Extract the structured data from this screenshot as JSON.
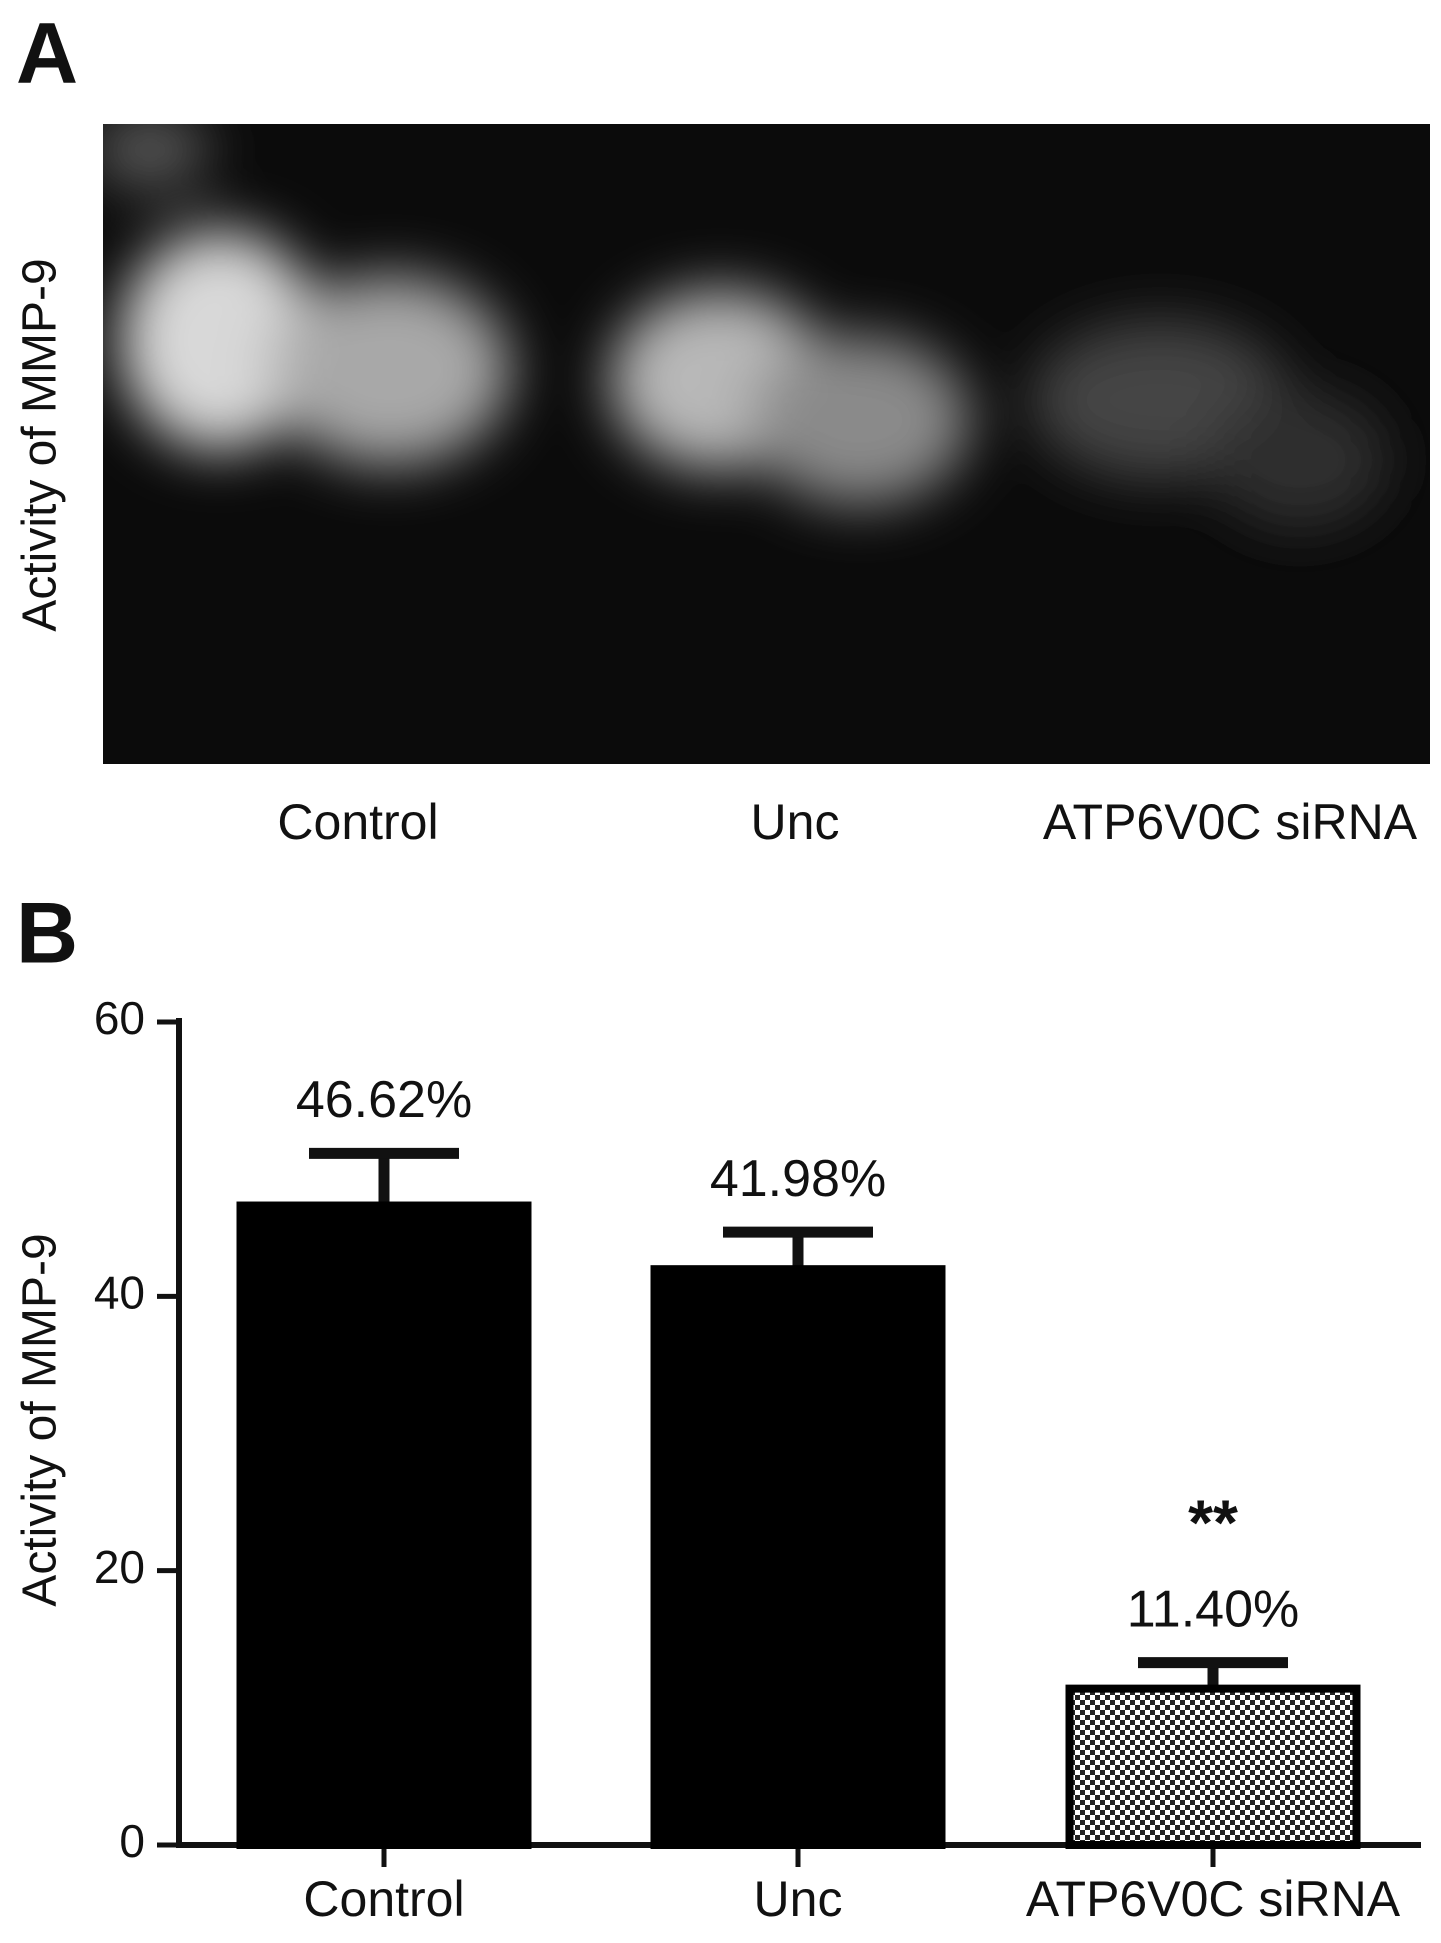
{
  "panel_a": {
    "label": "A",
    "y_label": "Activity of MMP-9",
    "lanes": [
      "Control",
      "Unc",
      "ATP6V0C siRNA"
    ]
  },
  "panel_b_label": "B",
  "chart_data": {
    "type": "bar",
    "y_label": "Activity of MMP-9",
    "categories": [
      "Control",
      "Unc",
      "ATP6V0C siRNA"
    ],
    "values": [
      46.62,
      41.98,
      11.4
    ],
    "value_labels": [
      "46.62%",
      "41.98%",
      "11.40%"
    ],
    "errors": [
      3.8,
      2.7,
      1.9
    ],
    "significance": [
      null,
      null,
      "**"
    ],
    "bar_fills": [
      "solid",
      "solid",
      "checkered"
    ],
    "color": "#000000",
    "ylim": [
      0,
      60
    ],
    "yticks": [
      0,
      20,
      40,
      60
    ],
    "grid": false
  }
}
